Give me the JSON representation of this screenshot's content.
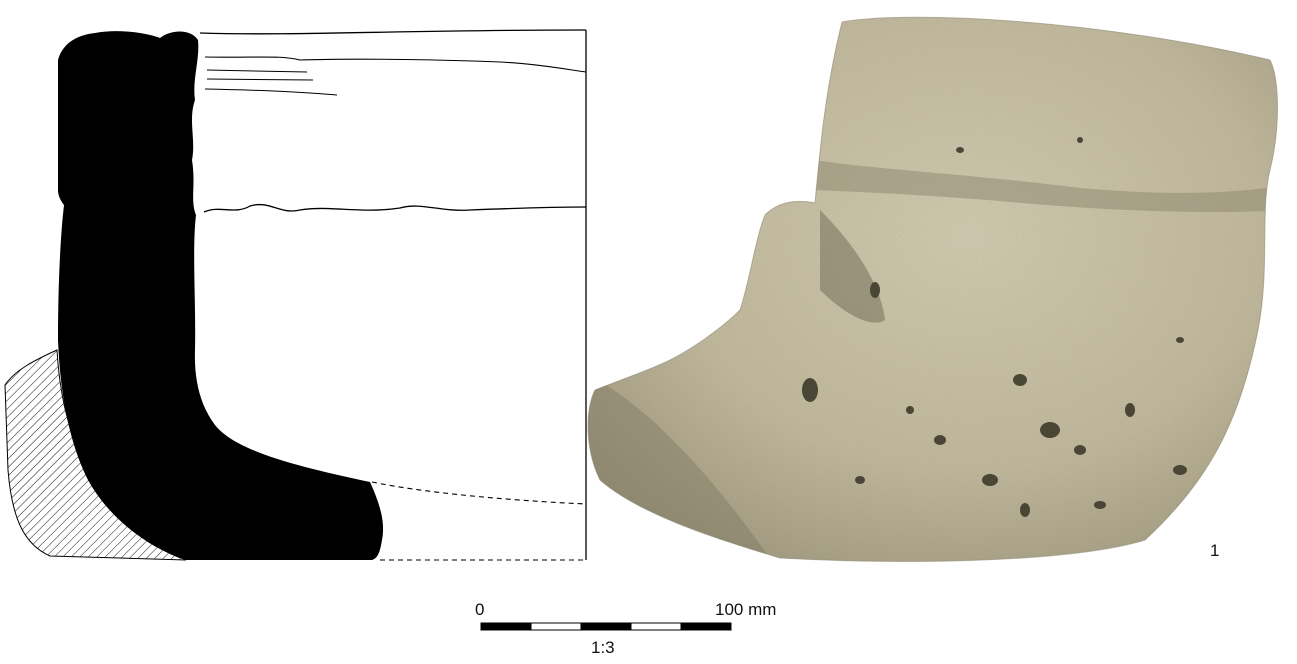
{
  "figure": {
    "number": "1"
  },
  "scale": {
    "start_label": "0",
    "end_label": "100 mm",
    "ratio_label": "1:3",
    "segments": 5
  },
  "colors": {
    "section_fill": "#000000",
    "stone_base": "#c9c2a6",
    "stone_shadow": "#8f8a72",
    "stone_pore": "#4a4636",
    "line": "#000000"
  }
}
